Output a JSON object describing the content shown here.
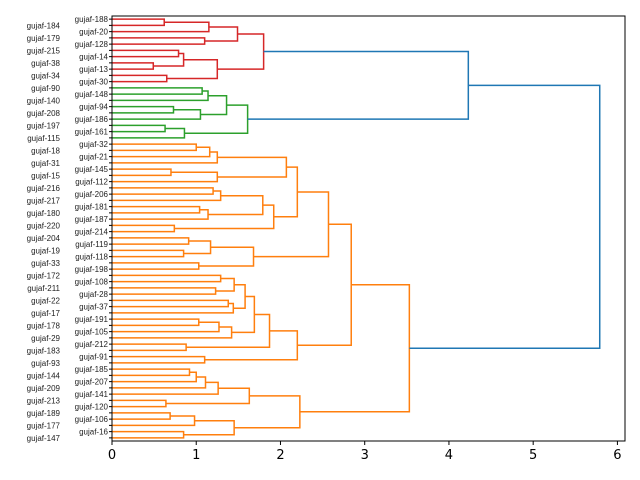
{
  "chart_data": {
    "type": "dendrogram",
    "orientation": "right",
    "title": "",
    "xlabel": "",
    "ylabel": "",
    "xlim": [
      0,
      6.09
    ],
    "xticks": [
      0,
      1,
      2,
      3,
      4,
      5,
      6
    ],
    "grid": false,
    "above_threshold_color": "#1f77b4",
    "cluster_colors": [
      "#d62728",
      "#2ca02c",
      "#ff7f0e"
    ],
    "color_threshold": 4.05,
    "tree": [
      5.79,
      [
        4.23,
        [
          1.8,
          [
            1.49,
            [
              1.15,
              [
                0.62,
                "gujaf-188",
                "gujaf-184"
              ],
              "gujaf-20"
            ],
            [
              1.1,
              "gujaf-179",
              "gujaf-128"
            ]
          ],
          [
            1.25,
            [
              0.85,
              [
                0.79,
                "gujaf-215",
                "gujaf-14"
              ],
              [
                0.49,
                "gujaf-38",
                "gujaf-13"
              ]
            ],
            [
              0.65,
              "gujaf-34",
              "gujaf-30"
            ]
          ]
        ],
        [
          1.61,
          [
            1.36,
            [
              1.14,
              [
                1.07,
                "gujaf-90",
                "gujaf-148"
              ],
              "gujaf-140"
            ],
            [
              1.05,
              [
                0.73,
                "gujaf-94",
                "gujaf-208"
              ],
              "gujaf-186"
            ]
          ],
          [
            0.86,
            [
              0.63,
              "gujaf-197",
              "gujaf-161"
            ],
            "gujaf-115"
          ]
        ]
      ],
      [
        3.53,
        [
          2.84,
          [
            2.57,
            [
              2.2,
              [
                2.07,
                [
                  1.25,
                  [
                    1.16,
                    [
                      1.0,
                      "gujaf-32",
                      "gujaf-18"
                    ],
                    "gujaf-21"
                  ],
                  "gujaf-31"
                ],
                [
                  1.25,
                  [
                    0.7,
                    "gujaf-145",
                    "gujaf-15"
                  ],
                  "gujaf-112"
                ]
              ],
              [
                1.92,
                [
                  1.79,
                  [
                    1.29,
                    [
                      1.2,
                      "gujaf-216",
                      "gujaf-206"
                    ],
                    "gujaf-217"
                  ],
                  [
                    1.14,
                    [
                      1.04,
                      "gujaf-181",
                      "gujaf-180"
                    ],
                    "gujaf-187"
                  ]
                ],
                [
                  0.74,
                  "gujaf-220",
                  "gujaf-214"
                ]
              ]
            ],
            [
              1.68,
              [
                1.17,
                [
                  0.91,
                  "gujaf-204",
                  "gujaf-119"
                ],
                [
                  0.85,
                  "gujaf-19",
                  "gujaf-118"
                ]
              ],
              [
                1.03,
                "gujaf-33",
                "gujaf-198"
              ]
            ]
          ],
          [
            2.2,
            [
              1.87,
              [
                1.69,
                [
                  1.58,
                  [
                    1.45,
                    [
                      1.29,
                      "gujaf-172",
                      "gujaf-108"
                    ],
                    [
                      1.23,
                      "gujaf-211",
                      "gujaf-28"
                    ]
                  ],
                  [
                    1.44,
                    [
                      1.38,
                      "gujaf-22",
                      "gujaf-37"
                    ],
                    "gujaf-17"
                  ]
                ],
                [
                  1.42,
                  [
                    1.27,
                    [
                      1.03,
                      "gujaf-191",
                      "gujaf-178"
                    ],
                    "gujaf-105"
                  ],
                  "gujaf-29"
                ]
              ],
              [
                0.88,
                "gujaf-212",
                "gujaf-183"
              ]
            ],
            [
              1.1,
              "gujaf-91",
              "gujaf-93"
            ]
          ]
        ],
        [
          2.23,
          [
            1.63,
            [
              1.26,
              [
                1.11,
                [
                  1.0,
                  [
                    0.92,
                    "gujaf-185",
                    "gujaf-144"
                  ],
                  "gujaf-207"
                ],
                "gujaf-209"
              ],
              "gujaf-141"
            ],
            [
              0.64,
              "gujaf-213",
              "gujaf-120"
            ]
          ],
          [
            1.45,
            [
              0.98,
              [
                0.69,
                "gujaf-189",
                "gujaf-106"
              ],
              "gujaf-177"
            ],
            [
              0.85,
              "gujaf-16",
              "gujaf-147"
            ]
          ]
        ]
      ]
    ]
  }
}
